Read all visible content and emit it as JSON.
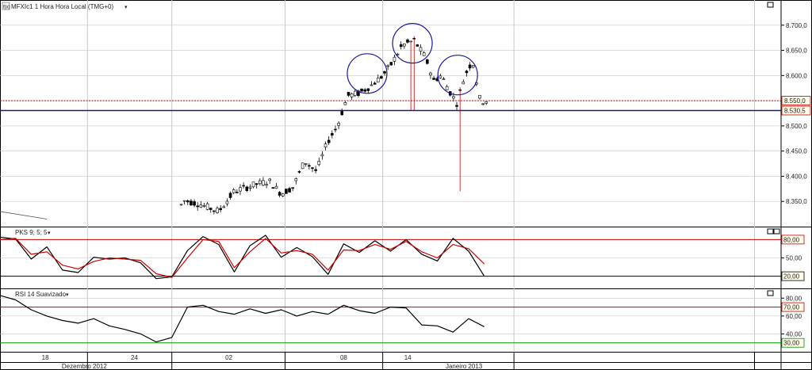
{
  "colors": {
    "background": "#ffffff",
    "grid": "#c8c8c8",
    "candle_line": "#000000",
    "candle_fill": "#ffffff",
    "price_line": "#c00000",
    "neckline": "#1a1a7a",
    "circle": "#1a1a9a",
    "stoch_k": "#000000",
    "stoch_d": "#d00000",
    "stoch_band": "#c00000",
    "rsi_upper": "#c00000",
    "rsi_lower": "#009000",
    "tag_fill": "#fffbe6",
    "tag_border": "#c00000"
  },
  "icons": [
    "symbol-icon",
    "dropdown-icon",
    "maximize-icon"
  ],
  "chart_data": [
    {
      "type": "candlestick",
      "title": "MFXIc1 1 Hora Hora Local (TMG+0)",
      "ylim": [
        8300,
        8750
      ],
      "yticks": [
        8350,
        8400,
        8450,
        8500,
        8550,
        8600,
        8650,
        8700
      ],
      "ytick_labels": [
        "8.350,0",
        "8.400,0",
        "8.450,0",
        "8.500,0",
        "8.550,0",
        "8.600,0",
        "8.650,0",
        "8.700,0"
      ],
      "price_line": {
        "value": 8550,
        "label": "8.550,0"
      },
      "neckline": {
        "value": 8530.5,
        "label": "8.530,5"
      },
      "annotations": [
        {
          "type": "circle",
          "x": 0.47,
          "y": 8604
        },
        {
          "type": "circle",
          "x": 0.528,
          "y": 8664
        },
        {
          "type": "circle",
          "x": 0.586,
          "y": 8601
        },
        {
          "type": "trendline",
          "x": [
            0.0,
            0.06
          ],
          "y": [
            8330,
            8315
          ]
        }
      ]
    },
    {
      "type": "line",
      "title": "PKS 9; 5; 5",
      "ylim": [
        0,
        100
      ],
      "yticks": [
        50
      ],
      "ytick_labels": [
        "50,00"
      ],
      "levels": [
        {
          "value": 80,
          "label": "80,00"
        },
        {
          "value": 20,
          "label": "20,00"
        }
      ],
      "series": [
        {
          "role": "%K",
          "color": "#000000",
          "x": [
            0.0,
            0.02,
            0.04,
            0.06,
            0.08,
            0.1,
            0.12,
            0.14,
            0.16,
            0.18,
            0.2,
            0.22,
            0.24,
            0.26,
            0.28,
            0.3,
            0.32,
            0.34,
            0.36,
            0.38,
            0.4,
            0.42,
            0.44,
            0.46,
            0.48,
            0.5,
            0.52,
            0.54,
            0.56,
            0.58,
            0.6,
            0.62
          ],
          "values": [
            84,
            81,
            48,
            68,
            30,
            26,
            51,
            48,
            50,
            42,
            16,
            19,
            62,
            85,
            72,
            27,
            70,
            87,
            51,
            67,
            52,
            23,
            73,
            59,
            78,
            61,
            80,
            56,
            45,
            82,
            61,
            20
          ]
        },
        {
          "role": "%D",
          "color": "#d00000",
          "x": [
            0.0,
            0.02,
            0.04,
            0.06,
            0.08,
            0.1,
            0.12,
            0.14,
            0.16,
            0.18,
            0.2,
            0.22,
            0.24,
            0.26,
            0.28,
            0.3,
            0.32,
            0.34,
            0.36,
            0.38,
            0.4,
            0.42,
            0.44,
            0.46,
            0.48,
            0.5,
            0.52,
            0.54,
            0.56,
            0.58,
            0.6,
            0.62
          ],
          "values": [
            80,
            82,
            56,
            60,
            38,
            32,
            44,
            50,
            48,
            46,
            24,
            18,
            50,
            80,
            77,
            34,
            60,
            82,
            58,
            62,
            56,
            30,
            63,
            62,
            72,
            64,
            77,
            60,
            50,
            72,
            65,
            40
          ]
        }
      ]
    },
    {
      "type": "line",
      "title": "RSI 14 Suavizado",
      "ylim": [
        20,
        90
      ],
      "yticks": [
        40,
        60,
        80
      ],
      "ytick_labels": [
        "40,00",
        "60,00",
        "80,00"
      ],
      "levels": [
        {
          "value": 70,
          "label": "70,00"
        },
        {
          "value": 30,
          "label": "30,00"
        }
      ],
      "series": [
        {
          "role": "RSI",
          "color": "#000000",
          "x": [
            0.0,
            0.02,
            0.04,
            0.06,
            0.08,
            0.1,
            0.12,
            0.14,
            0.16,
            0.18,
            0.2,
            0.22,
            0.24,
            0.26,
            0.28,
            0.3,
            0.32,
            0.34,
            0.36,
            0.38,
            0.4,
            0.42,
            0.44,
            0.46,
            0.48,
            0.5,
            0.52,
            0.54,
            0.56,
            0.58,
            0.6,
            0.62
          ],
          "values": [
            83,
            78,
            67,
            60,
            55,
            52,
            57,
            49,
            45,
            40,
            31,
            36,
            70,
            72,
            65,
            62,
            68,
            63,
            67,
            60,
            65,
            62,
            72,
            66,
            63,
            70,
            69,
            50,
            49,
            42,
            57,
            48
          ]
        }
      ]
    },
    {
      "type": "axis",
      "x_ticks": [
        {
          "x": 0.058,
          "label": "18"
        },
        {
          "x": 0.172,
          "label": "24"
        },
        {
          "x": 0.293,
          "label": "02"
        },
        {
          "x": 0.44,
          "label": "08"
        },
        {
          "x": 0.522,
          "label": "14"
        }
      ],
      "x_separators": [
        0.112,
        0.22,
        0.365,
        0.49,
        0.658,
        0.966
      ],
      "period_labels": [
        {
          "x": 0.108,
          "label": "Dezembro 2012"
        },
        {
          "x": 0.594,
          "label": "Janeiro 2013"
        }
      ]
    }
  ]
}
